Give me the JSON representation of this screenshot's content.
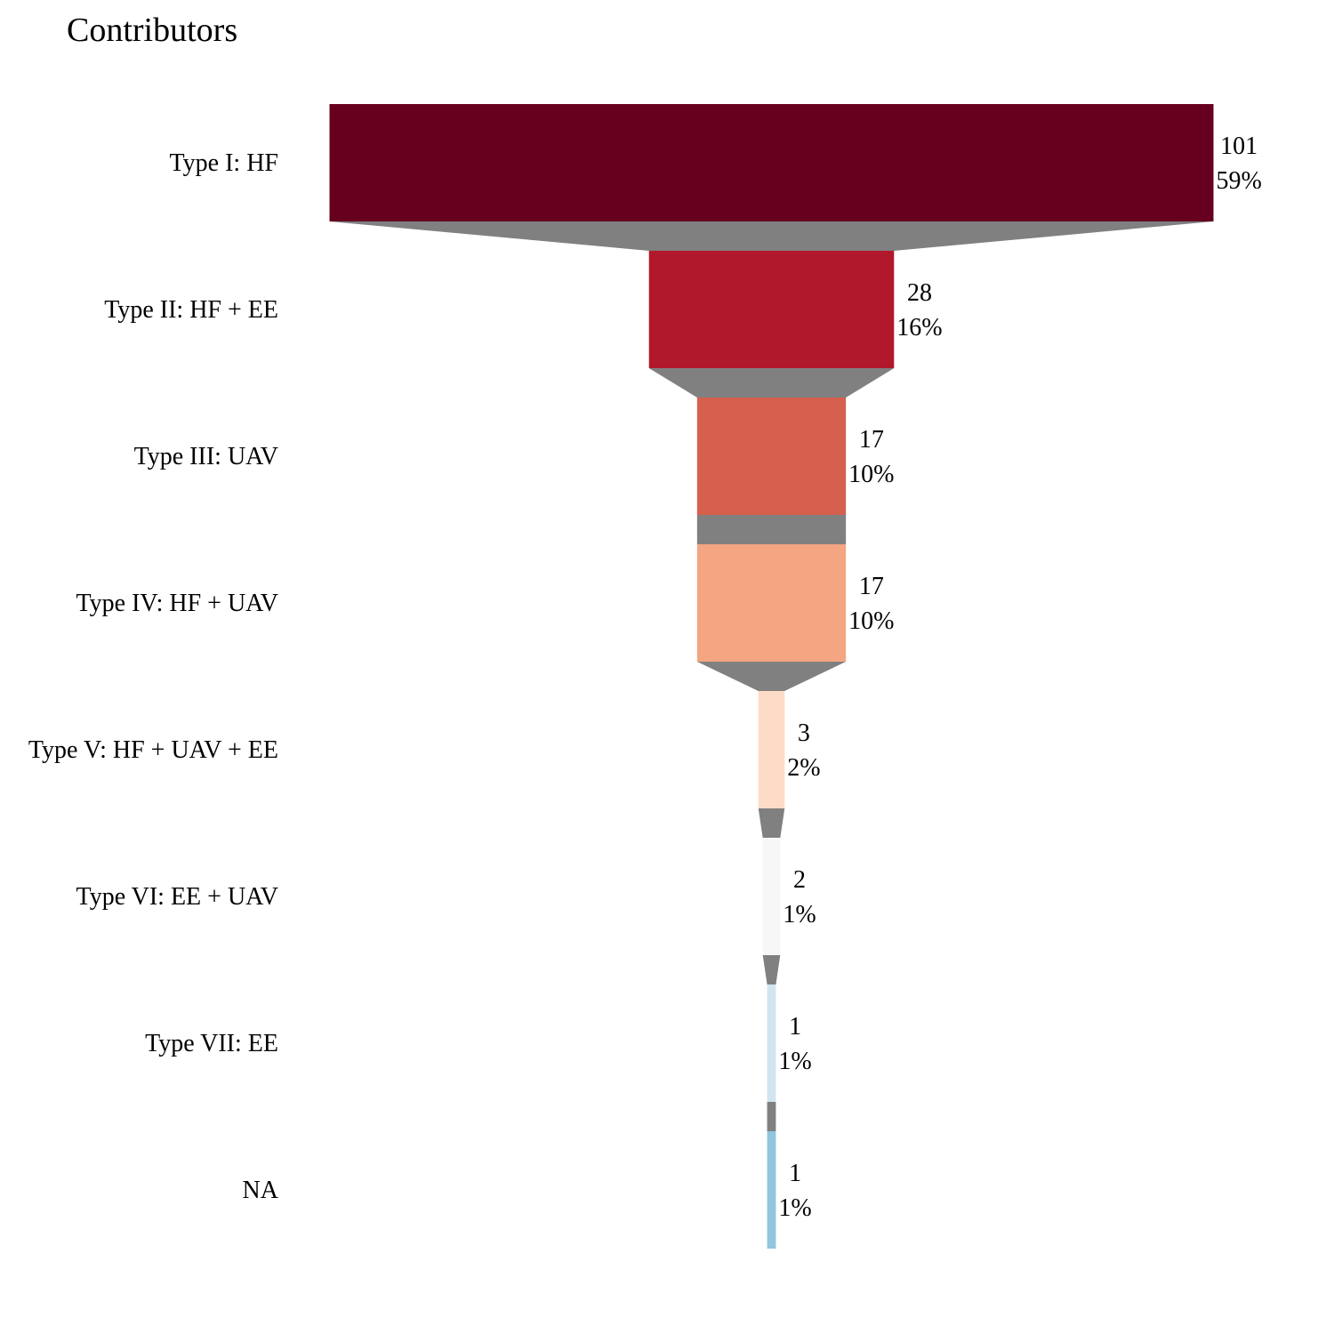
{
  "chart_data": {
    "type": "funnel",
    "title": "Contributors",
    "categories": [
      "Type I: HF",
      "Type II: HF + EE",
      "Type III: UAV",
      "Type IV: HF + UAV",
      "Type V: HF + UAV + EE",
      "Type VI: EE + UAV",
      "Type VII: EE",
      "NA"
    ],
    "values": [
      101,
      28,
      17,
      17,
      3,
      2,
      1,
      1
    ],
    "percent_labels": [
      "59%",
      "16%",
      "10%",
      "10%",
      "2%",
      "1%",
      "1%",
      "1%"
    ],
    "colors": [
      "#67001f",
      "#b2182b",
      "#d6604d",
      "#f4a582",
      "#fddbc7",
      "#f7f7f7",
      "#d1e5f0",
      "#92c5de"
    ],
    "connector_color": "#808080"
  }
}
